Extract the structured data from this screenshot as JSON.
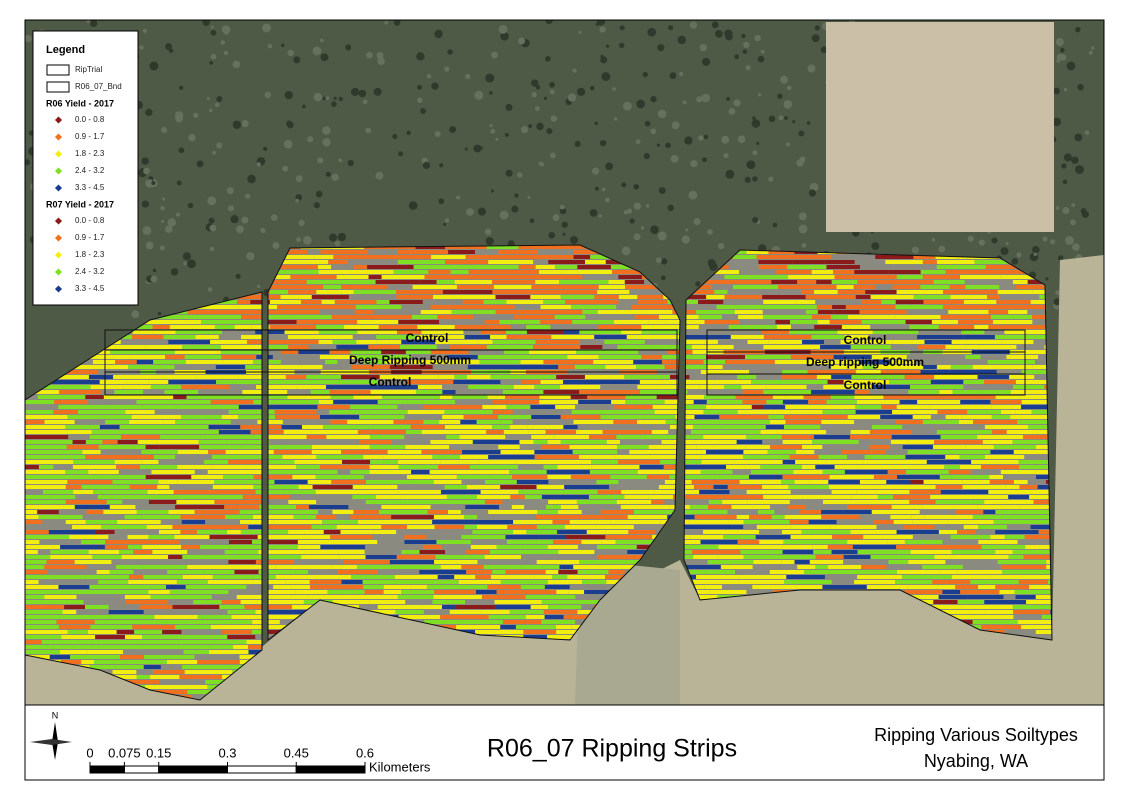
{
  "legend": {
    "title": "Legend",
    "boundaries": [
      {
        "label": "RipTrial"
      },
      {
        "label": "R06_07_Bnd"
      }
    ],
    "groups": [
      {
        "title": "R06 Yield - 2017",
        "items": [
          {
            "label": "0.0 - 0.8",
            "color": "#8b1a1a"
          },
          {
            "label": "0.9 - 1.7",
            "color": "#f07020"
          },
          {
            "label": "1.8 - 2.3",
            "color": "#f2ee10"
          },
          {
            "label": "2.4 - 3.2",
            "color": "#7fe023"
          },
          {
            "label": "3.3 - 4.5",
            "color": "#1b3d8f"
          }
        ]
      },
      {
        "title": "R07 Yield - 2017",
        "items": [
          {
            "label": "0.0 - 0.8",
            "color": "#8b1a1a"
          },
          {
            "label": "0.9 - 1.7",
            "color": "#f07020"
          },
          {
            "label": "1.8 - 2.3",
            "color": "#f2ee10"
          },
          {
            "label": "2.4 - 3.2",
            "color": "#7fe023"
          },
          {
            "label": "3.3 - 4.5",
            "color": "#1b3d8f"
          }
        ]
      }
    ]
  },
  "strips": [
    {
      "label": "Control"
    },
    {
      "label": "Deep Ripping 500mm"
    },
    {
      "label": "Control"
    },
    {
      "label": "Control"
    },
    {
      "label": "Deep ripping 500mm"
    },
    {
      "label": "Control"
    }
  ],
  "north": "N",
  "scale_bar": {
    "ticks": [
      0,
      0.075,
      0.15,
      0.3,
      0.45,
      0.6
    ],
    "unit": "Kilometers"
  },
  "title": "R06_07 Ripping Strips",
  "subtitle_lines": [
    "Ripping Various Soiltypes",
    "Nyabing, WA"
  ]
}
